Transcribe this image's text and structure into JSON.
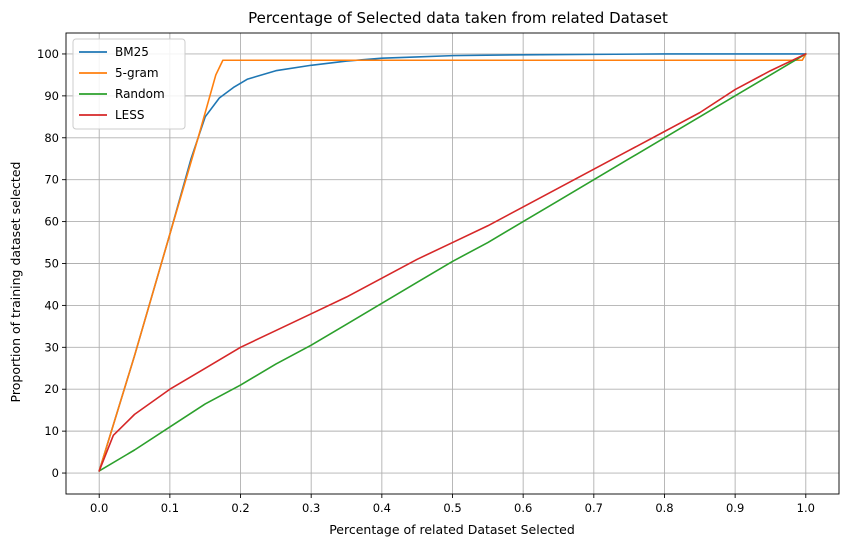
{
  "chart_data": {
    "type": "line",
    "title": "Percentage of Selected data taken from related Dataset",
    "xlabel": "Percentage of related Dataset Selected",
    "ylabel": "Proportion of training dataset selected",
    "xlim": [
      -0.047,
      1.047
    ],
    "ylim": [
      -5,
      105
    ],
    "xticks": [
      "0.0",
      "0.1",
      "0.2",
      "0.3",
      "0.4",
      "0.5",
      "0.6",
      "0.7",
      "0.8",
      "0.9",
      "1.0"
    ],
    "xtick_values": [
      0,
      0.1,
      0.2,
      0.3,
      0.4,
      0.5,
      0.6,
      0.7,
      0.8,
      0.9,
      1.0
    ],
    "yticks": [
      "0",
      "10",
      "20",
      "30",
      "40",
      "50",
      "60",
      "70",
      "80",
      "90",
      "100"
    ],
    "ytick_values": [
      0,
      10,
      20,
      30,
      40,
      50,
      60,
      70,
      80,
      90,
      100
    ],
    "grid": true,
    "legend_position": "upper-left",
    "series": [
      {
        "name": "BM25",
        "color": "#1f77b4",
        "x": [
          0,
          0.05,
          0.1,
          0.13,
          0.15,
          0.17,
          0.19,
          0.21,
          0.25,
          0.3,
          0.35,
          0.4,
          0.45,
          0.5,
          0.6,
          0.7,
          0.8,
          0.9,
          1.0
        ],
        "y": [
          0.5,
          28,
          57,
          75,
          85,
          89.5,
          92,
          94,
          96,
          97.3,
          98.3,
          99,
          99.3,
          99.6,
          99.8,
          99.9,
          100,
          100,
          100
        ]
      },
      {
        "name": "5-gram",
        "color": "#ff7f0e",
        "x": [
          0,
          0.05,
          0.1,
          0.14,
          0.165,
          0.175,
          0.4,
          0.6,
          0.8,
          0.995,
          1.0
        ],
        "y": [
          0.5,
          28,
          57,
          80,
          95,
          98.5,
          98.5,
          98.5,
          98.5,
          98.5,
          100
        ]
      },
      {
        "name": "Random",
        "color": "#2ca02c",
        "x": [
          0,
          0.05,
          0.1,
          0.15,
          0.2,
          0.25,
          0.3,
          0.35,
          0.4,
          0.45,
          0.5,
          0.55,
          0.6,
          0.65,
          0.7,
          0.75,
          0.8,
          0.85,
          0.9,
          0.95,
          1.0
        ],
        "y": [
          0.5,
          5.5,
          11,
          16.5,
          21,
          26,
          30.5,
          35.5,
          40.5,
          45.5,
          50.5,
          55,
          60,
          65,
          70,
          75,
          80,
          85,
          90,
          95,
          100
        ]
      },
      {
        "name": "LESS",
        "color": "#d62728",
        "x": [
          0,
          0.02,
          0.05,
          0.1,
          0.15,
          0.2,
          0.25,
          0.3,
          0.35,
          0.4,
          0.45,
          0.5,
          0.55,
          0.6,
          0.65,
          0.7,
          0.75,
          0.8,
          0.85,
          0.9,
          0.95,
          1.0
        ],
        "y": [
          0.5,
          9,
          14,
          20,
          25,
          30,
          34,
          38,
          42,
          46.5,
          51,
          55,
          59,
          63.5,
          68,
          72.5,
          77,
          81.5,
          86,
          91.5,
          96,
          100
        ]
      }
    ]
  }
}
